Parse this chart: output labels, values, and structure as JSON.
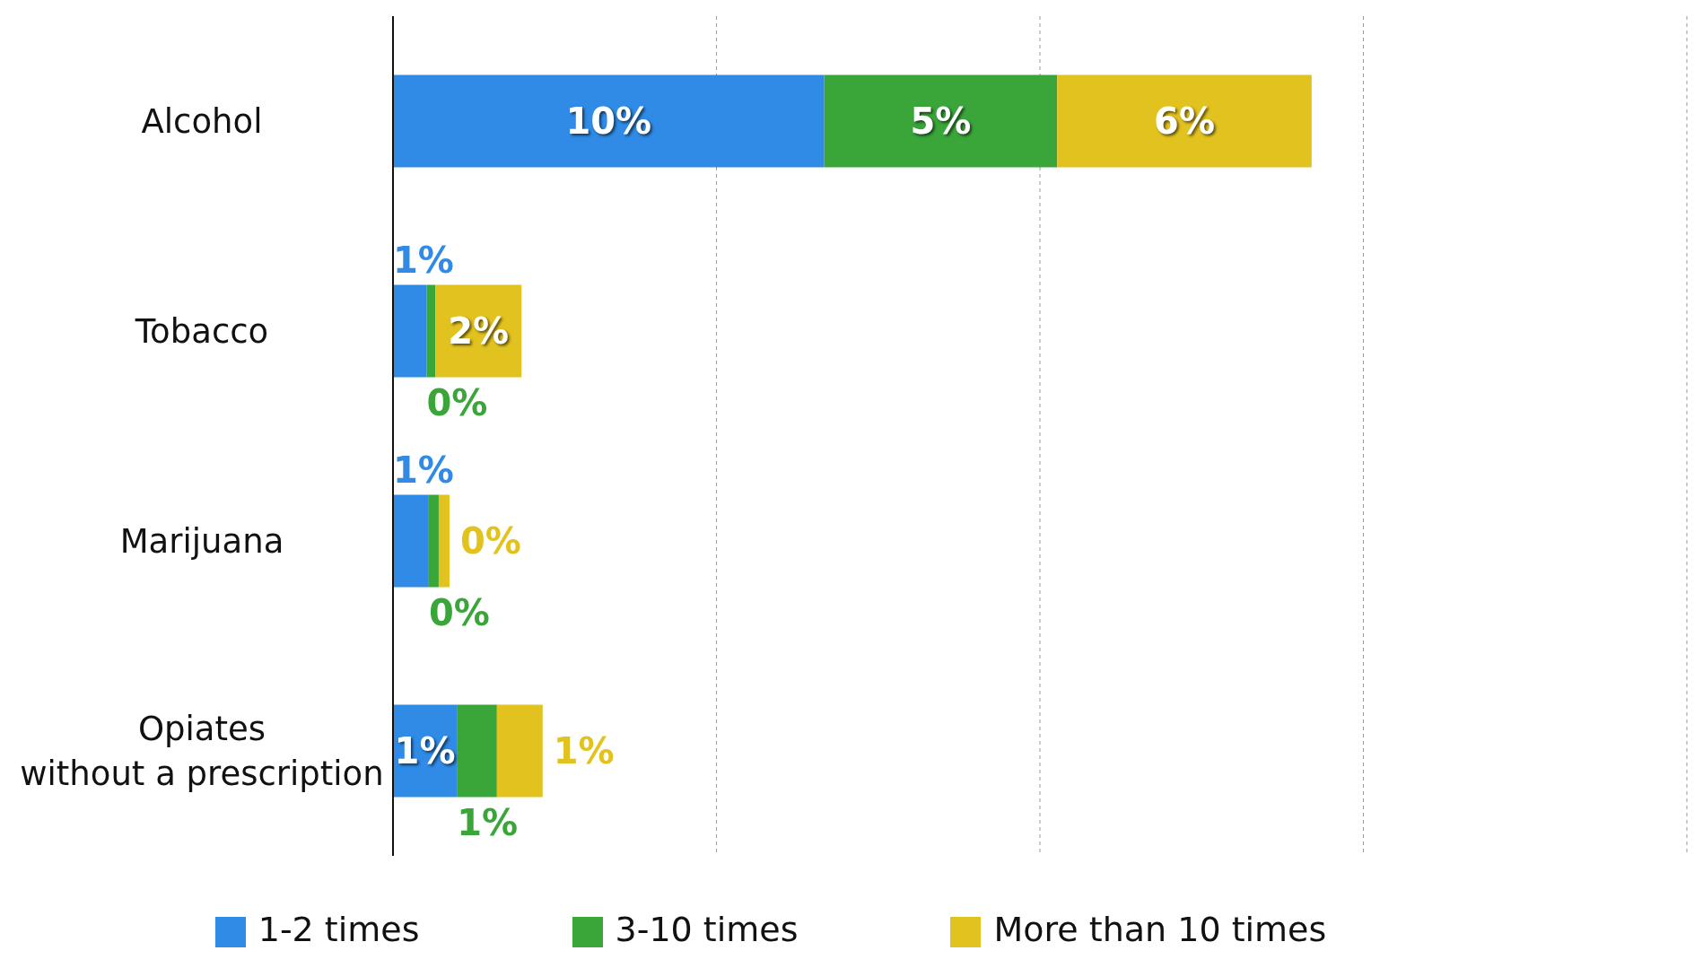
{
  "chart_data": {
    "type": "bar",
    "orientation": "horizontal",
    "stacked": true,
    "categories": [
      "Alcohol",
      "Tobacco",
      "Marijuana",
      "Opiates\nwithout a prescription"
    ],
    "series": [
      {
        "name": "1-2 times",
        "color": "#2f8be6",
        "values": [
          10,
          0.78,
          0.83,
          1.48
        ],
        "value_labels": [
          "10%",
          "1%",
          "1%",
          "1%"
        ]
      },
      {
        "name": "3-10 times",
        "color": "#3aa63a",
        "values": [
          5.4,
          0.2,
          0.23,
          0.93
        ],
        "value_labels": [
          "5%",
          "0%",
          "0%",
          "1%"
        ]
      },
      {
        "name": "More than 10 times",
        "color": "#e2c21e",
        "values": [
          5.9,
          2.0,
          0.25,
          1.06
        ],
        "value_labels": [
          "6%",
          "2%",
          "0%",
          "1%"
        ]
      }
    ],
    "xlim": [
      0,
      30
    ],
    "xticks": [
      {
        "value": 0,
        "label": null
      },
      {
        "value": 7.5,
        "label": null
      },
      {
        "value": 15,
        "label": null
      },
      {
        "value": 22.5,
        "label": null
      },
      {
        "value": 30,
        "label": null
      }
    ],
    "tick_labels": "y",
    "grid": "x",
    "legend": "bottom"
  }
}
